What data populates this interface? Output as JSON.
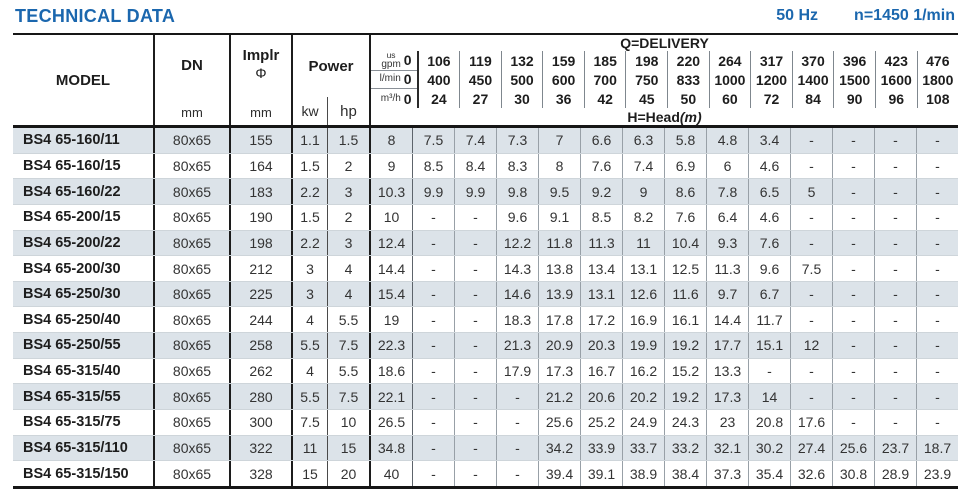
{
  "page": {
    "title": "TECHNICAL DATA",
    "frequency": "50 Hz",
    "speed": "n=1450 1/min"
  },
  "colors": {
    "accent_blue": "#1b67ae",
    "row_stripe": "#dce3e9"
  },
  "table": {
    "header": {
      "model": "MODEL",
      "dn": "DN",
      "dn_unit": "mm",
      "implr": "Implr",
      "implr_symbol": "Φ",
      "implr_unit": "mm",
      "power": "Power",
      "kw": "kw",
      "hp": "hp",
      "delivery_title": "Q=DELIVERY",
      "head_label": "H=Head",
      "head_unit": "(m)",
      "unit_rows": [
        {
          "top": "us",
          "label": "gpm",
          "values": [
            "0",
            "106",
            "119",
            "132",
            "159",
            "185",
            "198",
            "220",
            "264",
            "317",
            "370",
            "396",
            "423",
            "476"
          ]
        },
        {
          "top": null,
          "label": "l/min",
          "values": [
            "0",
            "400",
            "450",
            "500",
            "600",
            "700",
            "750",
            "833",
            "1000",
            "1200",
            "1400",
            "1500",
            "1600",
            "1800"
          ]
        },
        {
          "top": null,
          "label": "m³/h",
          "values": [
            "0",
            "24",
            "27",
            "30",
            "36",
            "42",
            "45",
            "50",
            "60",
            "72",
            "84",
            "90",
            "96",
            "108"
          ]
        }
      ]
    },
    "rows": [
      {
        "model": "BS4 65-160/11",
        "dn": "80x65",
        "implr": "155",
        "kw": "1.1",
        "hp": "1.5",
        "head": [
          "8",
          "7.5",
          "7.4",
          "7.3",
          "7",
          "6.6",
          "6.3",
          "5.8",
          "4.8",
          "3.4",
          "-",
          "-",
          "-",
          "-"
        ]
      },
      {
        "model": "BS4 65-160/15",
        "dn": "80x65",
        "implr": "164",
        "kw": "1.5",
        "hp": "2",
        "head": [
          "9",
          "8.5",
          "8.4",
          "8.3",
          "8",
          "7.6",
          "7.4",
          "6.9",
          "6",
          "4.6",
          "-",
          "-",
          "-",
          "-"
        ]
      },
      {
        "model": "BS4 65-160/22",
        "dn": "80x65",
        "implr": "183",
        "kw": "2.2",
        "hp": "3",
        "head": [
          "10.3",
          "9.9",
          "9.9",
          "9.8",
          "9.5",
          "9.2",
          "9",
          "8.6",
          "7.8",
          "6.5",
          "5",
          "-",
          "-",
          "-"
        ]
      },
      {
        "model": "BS4 65-200/15",
        "dn": "80x65",
        "implr": "190",
        "kw": "1.5",
        "hp": "2",
        "head": [
          "10",
          "-",
          "-",
          "9.6",
          "9.1",
          "8.5",
          "8.2",
          "7.6",
          "6.4",
          "4.6",
          "-",
          "-",
          "-",
          "-"
        ]
      },
      {
        "model": "BS4 65-200/22",
        "dn": "80x65",
        "implr": "198",
        "kw": "2.2",
        "hp": "3",
        "head": [
          "12.4",
          "-",
          "-",
          "12.2",
          "11.8",
          "11.3",
          "11",
          "10.4",
          "9.3",
          "7.6",
          "-",
          "-",
          "-",
          "-"
        ]
      },
      {
        "model": "BS4 65-200/30",
        "dn": "80x65",
        "implr": "212",
        "kw": "3",
        "hp": "4",
        "head": [
          "14.4",
          "-",
          "-",
          "14.3",
          "13.8",
          "13.4",
          "13.1",
          "12.5",
          "11.3",
          "9.6",
          "7.5",
          "-",
          "-",
          "-"
        ]
      },
      {
        "model": "BS4 65-250/30",
        "dn": "80x65",
        "implr": "225",
        "kw": "3",
        "hp": "4",
        "head": [
          "15.4",
          "-",
          "-",
          "14.6",
          "13.9",
          "13.1",
          "12.6",
          "11.6",
          "9.7",
          "6.7",
          "-",
          "-",
          "-",
          "-"
        ]
      },
      {
        "model": "BS4 65-250/40",
        "dn": "80x65",
        "implr": "244",
        "kw": "4",
        "hp": "5.5",
        "head": [
          "19",
          "-",
          "-",
          "18.3",
          "17.8",
          "17.2",
          "16.9",
          "16.1",
          "14.4",
          "11.7",
          "-",
          "-",
          "-",
          "-"
        ]
      },
      {
        "model": "BS4 65-250/55",
        "dn": "80x65",
        "implr": "258",
        "kw": "5.5",
        "hp": "7.5",
        "head": [
          "22.3",
          "-",
          "-",
          "21.3",
          "20.9",
          "20.3",
          "19.9",
          "19.2",
          "17.7",
          "15.1",
          "12",
          "-",
          "-",
          "-"
        ]
      },
      {
        "model": "BS4 65-315/40",
        "dn": "80x65",
        "implr": "262",
        "kw": "4",
        "hp": "5.5",
        "head": [
          "18.6",
          "-",
          "-",
          "17.9",
          "17.3",
          "16.7",
          "16.2",
          "15.2",
          "13.3",
          "-",
          "-",
          "-",
          "-",
          "-"
        ]
      },
      {
        "model": "BS4 65-315/55",
        "dn": "80x65",
        "implr": "280",
        "kw": "5.5",
        "hp": "7.5",
        "head": [
          "22.1",
          "-",
          "-",
          "-",
          "21.2",
          "20.6",
          "20.2",
          "19.2",
          "17.3",
          "14",
          "-",
          "-",
          "-",
          "-"
        ]
      },
      {
        "model": "BS4 65-315/75",
        "dn": "80x65",
        "implr": "300",
        "kw": "7.5",
        "hp": "10",
        "head": [
          "26.5",
          "-",
          "-",
          "-",
          "25.6",
          "25.2",
          "24.9",
          "24.3",
          "23",
          "20.8",
          "17.6",
          "-",
          "-",
          "-"
        ]
      },
      {
        "model": "BS4 65-315/110",
        "dn": "80x65",
        "implr": "322",
        "kw": "11",
        "hp": "15",
        "head": [
          "34.8",
          "-",
          "-",
          "-",
          "34.2",
          "33.9",
          "33.7",
          "33.2",
          "32.1",
          "30.2",
          "27.4",
          "25.6",
          "23.7",
          "18.7"
        ]
      },
      {
        "model": "BS4 65-315/150",
        "dn": "80x65",
        "implr": "328",
        "kw": "15",
        "hp": "20",
        "head": [
          "40",
          "-",
          "-",
          "-",
          "39.4",
          "39.1",
          "38.9",
          "38.4",
          "37.3",
          "35.4",
          "32.6",
          "30.8",
          "28.9",
          "23.9"
        ]
      }
    ]
  }
}
